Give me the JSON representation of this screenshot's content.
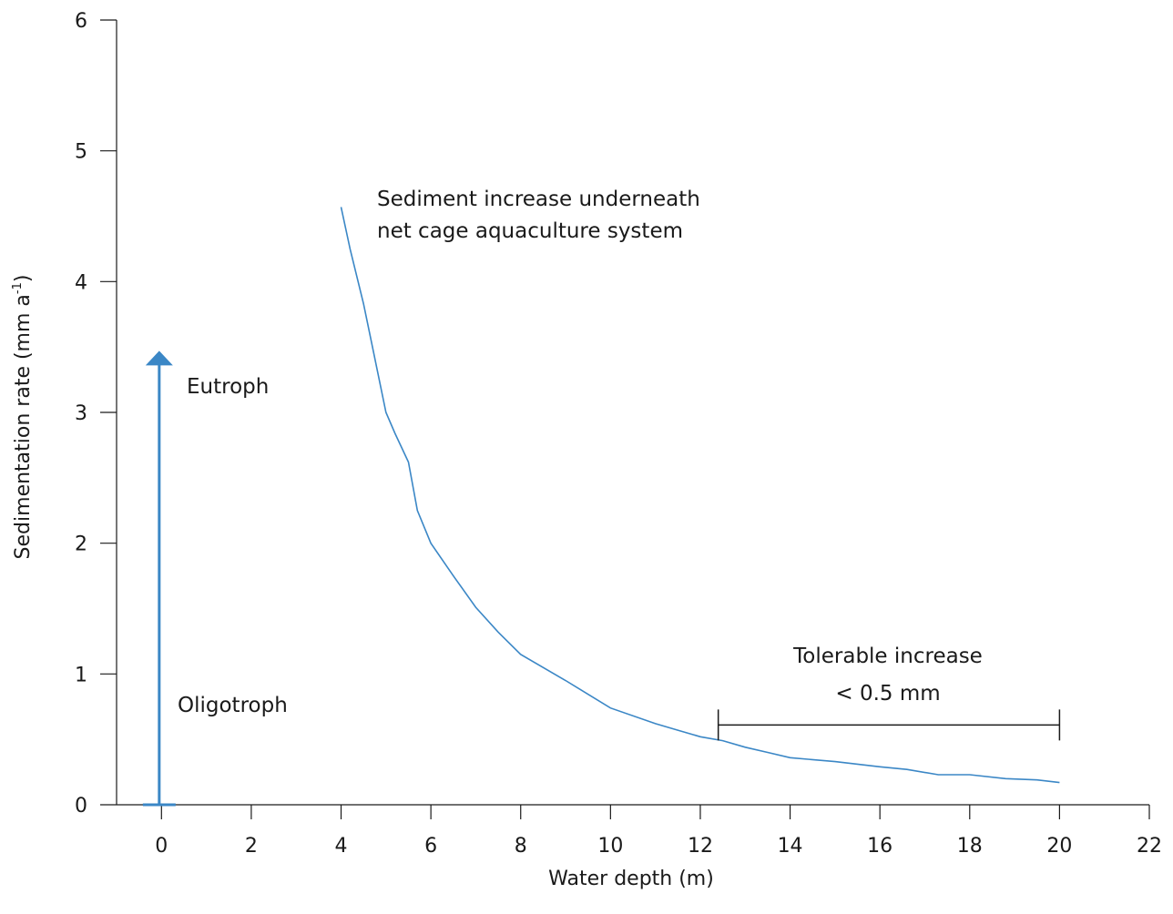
{
  "chart_data": {
    "type": "line",
    "xlabel": "Water depth (m)",
    "ylabel": "Sedimentation rate (mm a",
    "ylabel_sup": "-1",
    "ylabel_close": ")",
    "xlim": [
      -1,
      22
    ],
    "ylim": [
      0,
      6
    ],
    "x_ticks": [
      0,
      2,
      4,
      6,
      8,
      10,
      12,
      14,
      16,
      18,
      20,
      22
    ],
    "y_ticks": [
      0,
      1,
      2,
      3,
      4,
      5,
      6
    ],
    "grid": false,
    "colors": {
      "series": "#3b87c6",
      "arrow": "#3b87c6",
      "axis": "#1a1a1a",
      "bracket": "#1a1a1a"
    },
    "series": [
      {
        "x": [
          4.0,
          4.2,
          4.5,
          4.7,
          5.0,
          5.2,
          5.5,
          5.7,
          6.0,
          6.5,
          7.0,
          7.5,
          8.0,
          9.0,
          10.0,
          11.0,
          11.5,
          12.0,
          12.5,
          13.0,
          13.5,
          14.0,
          15.0,
          16.0,
          16.6,
          17.3,
          18.0,
          18.8,
          19.5,
          20.0
        ],
        "y": [
          4.57,
          4.25,
          3.83,
          3.5,
          3.0,
          2.84,
          2.62,
          2.25,
          2.0,
          1.75,
          1.51,
          1.32,
          1.15,
          0.95,
          0.74,
          0.62,
          0.57,
          0.52,
          0.49,
          0.44,
          0.4,
          0.36,
          0.33,
          0.29,
          0.27,
          0.23,
          0.23,
          0.2,
          0.19,
          0.17
        ]
      }
    ],
    "annotations": {
      "curve_label_line1": "Sediment increase underneath",
      "curve_label_line2": "net cage aquaculture system",
      "eutroph": "Eutroph",
      "oligotroph": "Oligotroph",
      "tolerable_line1": "Tolerable increase",
      "tolerable_line2": "< 0.5 mm"
    },
    "trophic_arrow": {
      "x": -0.05,
      "y_start": 0,
      "y_end": 3.45
    },
    "tolerable_range": {
      "x_start": 12.4,
      "x_end": 20.0,
      "y": 0.61
    }
  }
}
